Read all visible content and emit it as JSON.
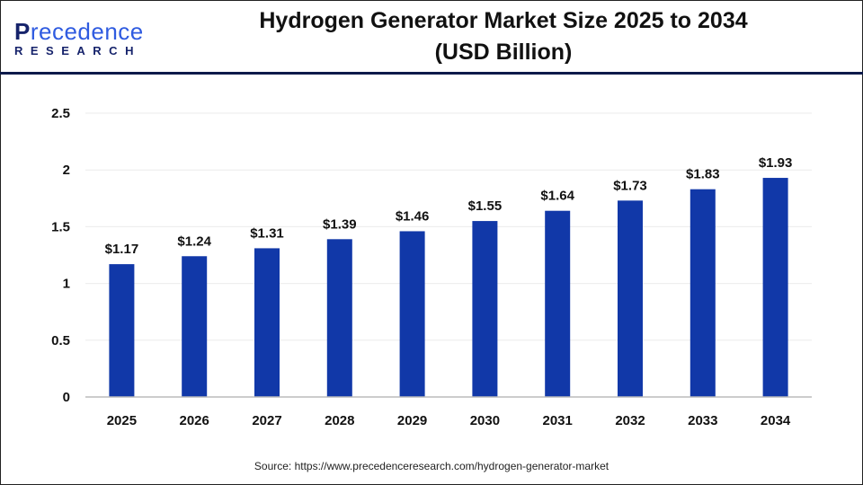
{
  "logo": {
    "main_prefix": "P",
    "main_rest": "recedence",
    "sub": "RESEARCH"
  },
  "title": "Hydrogen Generator Market Size 2025 to 2034",
  "subtitle": "(USD Billion)",
  "source": "Source: https://www.precedenceresearch.com/hydrogen-generator-market",
  "colors": {
    "bar": "#1138a8",
    "header_line": "#0d1a4a"
  },
  "chart_data": {
    "type": "bar",
    "title": "Hydrogen Generator Market Size 2025 to 2034 (USD Billion)",
    "categories": [
      "2025",
      "2026",
      "2027",
      "2028",
      "2029",
      "2030",
      "2031",
      "2032",
      "2033",
      "2034"
    ],
    "values": [
      1.17,
      1.24,
      1.31,
      1.39,
      1.46,
      1.55,
      1.64,
      1.73,
      1.83,
      1.93
    ],
    "data_labels": [
      "$1.17",
      "$1.24",
      "$1.31",
      "$1.39",
      "$1.46",
      "$1.55",
      "$1.64",
      "$1.73",
      "$1.83",
      "$1.93"
    ],
    "ylim": [
      0,
      2.5
    ],
    "yticks": [
      "0",
      "0.5",
      "1",
      "1.5",
      "2",
      "2.5"
    ],
    "grid": true,
    "xlabel": "",
    "ylabel": ""
  }
}
